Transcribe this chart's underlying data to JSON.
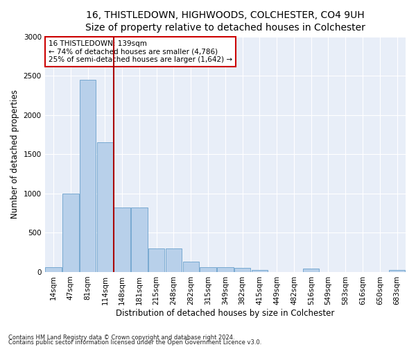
{
  "title": "16, THISTLEDOWN, HIGHWOODS, COLCHESTER, CO4 9UH",
  "subtitle": "Size of property relative to detached houses in Colchester",
  "xlabel": "Distribution of detached houses by size in Colchester",
  "ylabel": "Number of detached properties",
  "categories": [
    "14sqm",
    "47sqm",
    "81sqm",
    "114sqm",
    "148sqm",
    "181sqm",
    "215sqm",
    "248sqm",
    "282sqm",
    "315sqm",
    "349sqm",
    "382sqm",
    "415sqm",
    "449sqm",
    "482sqm",
    "516sqm",
    "549sqm",
    "583sqm",
    "616sqm",
    "650sqm",
    "683sqm"
  ],
  "values": [
    60,
    1000,
    2450,
    1650,
    820,
    820,
    300,
    300,
    130,
    65,
    65,
    50,
    30,
    0,
    0,
    40,
    0,
    0,
    0,
    0,
    30
  ],
  "bar_color": "#b8d0ea",
  "bar_edge_color": "#6aa0cc",
  "vline_color": "#aa0000",
  "annotation_text": "16 THISTLEDOWN: 139sqm\n← 74% of detached houses are smaller (4,786)\n25% of semi-detached houses are larger (1,642) →",
  "annotation_box_color": "#ffffff",
  "annotation_box_edge": "#cc0000",
  "footnote1": "Contains HM Land Registry data © Crown copyright and database right 2024.",
  "footnote2": "Contains public sector information licensed under the Open Government Licence v3.0.",
  "background_color": "#e8eef8",
  "ylim": [
    0,
    3000
  ],
  "title_fontsize": 10,
  "xlabel_fontsize": 8.5,
  "ylabel_fontsize": 8.5,
  "tick_fontsize": 7.5,
  "annot_fontsize": 7.5
}
